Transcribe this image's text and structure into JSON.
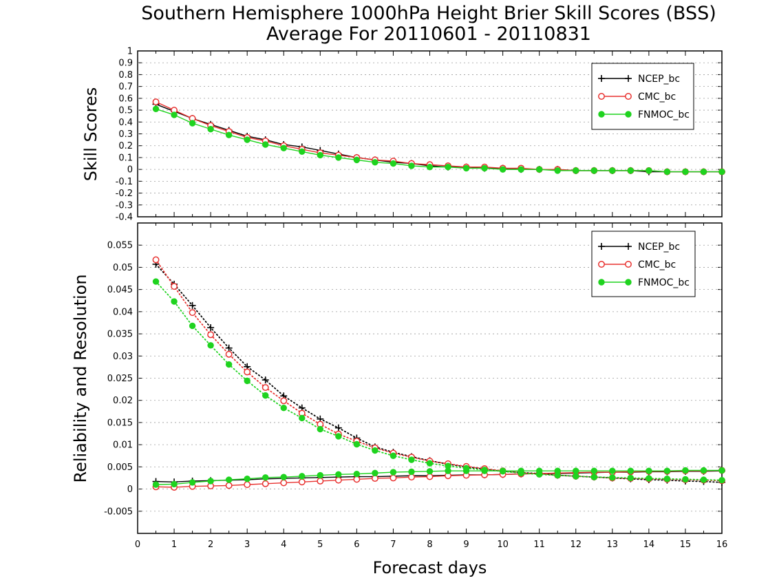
{
  "title_line1": "Southern Hemisphere 1000hPa Height Brier Skill Scores (BSS)",
  "title_line2": "Average For 20110601 - 20110831",
  "colors": {
    "NCEP_bc": "#000000",
    "CMC_bc": "#e8312f",
    "FNMOC_bc": "#1fd31f"
  },
  "chart_data": [
    {
      "type": "line",
      "ylabel": "Skill Scores",
      "xlabel": "",
      "xlim": [
        0,
        16
      ],
      "ylim": [
        -0.4,
        1
      ],
      "yticks": [
        "1",
        "0.9",
        "0.8",
        "0.7",
        "0.6",
        "0.5",
        "0.4",
        "0.3",
        "0.2",
        "0.1",
        "0",
        "-0.1",
        "-0.2",
        "-0.3",
        "-0.4"
      ],
      "grid": true,
      "legend_position": "top-right",
      "x": [
        0.5,
        1,
        1.5,
        2,
        2.5,
        3,
        3.5,
        4,
        4.5,
        5,
        5.5,
        6,
        6.5,
        7,
        7.5,
        8,
        8.5,
        9,
        9.5,
        10,
        10.5,
        11,
        11.5,
        12,
        12.5,
        13,
        13.5,
        14,
        14.5,
        15,
        15.5,
        16
      ],
      "series": [
        {
          "name": "NCEP_bc",
          "marker": "plus",
          "values": [
            0.55,
            0.49,
            0.43,
            0.38,
            0.33,
            0.28,
            0.25,
            0.21,
            0.19,
            0.16,
            0.13,
            0.1,
            0.08,
            0.06,
            0.05,
            0.03,
            0.02,
            0.02,
            0.01,
            0.01,
            0.0,
            0.0,
            0.0,
            -0.01,
            -0.01,
            -0.01,
            -0.01,
            -0.02,
            -0.02,
            -0.02,
            -0.02,
            -0.02
          ]
        },
        {
          "name": "CMC_bc",
          "marker": "circle-open",
          "values": [
            0.57,
            0.5,
            0.43,
            0.37,
            0.32,
            0.27,
            0.24,
            0.2,
            0.17,
            0.14,
            0.12,
            0.1,
            0.08,
            0.07,
            0.05,
            0.04,
            0.03,
            0.02,
            0.02,
            0.01,
            0.01,
            0.0,
            0.0,
            -0.01,
            -0.01,
            -0.01,
            -0.01,
            -0.01,
            -0.02,
            -0.02,
            -0.02,
            -0.02
          ]
        },
        {
          "name": "FNMOC_bc",
          "marker": "circle-filled",
          "values": [
            0.51,
            0.46,
            0.39,
            0.34,
            0.29,
            0.25,
            0.21,
            0.18,
            0.15,
            0.12,
            0.1,
            0.08,
            0.06,
            0.05,
            0.03,
            0.02,
            0.02,
            0.01,
            0.01,
            0.0,
            0.0,
            0.0,
            -0.01,
            -0.01,
            -0.01,
            -0.01,
            -0.01,
            -0.01,
            -0.02,
            -0.02,
            -0.02,
            -0.02
          ]
        }
      ]
    },
    {
      "type": "line",
      "ylabel": "Reliability and Resolution",
      "xlabel": "Forecast days",
      "xlim": [
        0,
        16
      ],
      "ylim": [
        -0.01,
        0.06
      ],
      "yticks": [
        "0.055",
        "0.05",
        "0.045",
        "0.04",
        "0.035",
        "0.03",
        "0.025",
        "0.02",
        "0.015",
        "0.01",
        "0.005",
        "0",
        "-0.005"
      ],
      "xticks": [
        "0",
        "1",
        "2",
        "3",
        "4",
        "5",
        "6",
        "7",
        "8",
        "9",
        "10",
        "11",
        "12",
        "13",
        "14",
        "15",
        "16"
      ],
      "grid": true,
      "legend_position": "top-right",
      "x": [
        0.5,
        1,
        1.5,
        2,
        2.5,
        3,
        3.5,
        4,
        4.5,
        5,
        5.5,
        6,
        6.5,
        7,
        7.5,
        8,
        8.5,
        9,
        9.5,
        10,
        10.5,
        11,
        11.5,
        12,
        12.5,
        13,
        13.5,
        14,
        14.5,
        15,
        15.5,
        16
      ],
      "series": [
        {
          "name": "NCEP_bc",
          "marker": "plus",
          "line": "solid",
          "values": [
            0.0017,
            0.0016,
            0.0018,
            0.0019,
            0.002,
            0.0021,
            0.0023,
            0.0024,
            0.0025,
            0.0026,
            0.0027,
            0.0028,
            0.0028,
            0.0029,
            0.003,
            0.003,
            0.0031,
            0.0032,
            0.0032,
            0.0033,
            0.0034,
            0.0035,
            0.0035,
            0.0036,
            0.0037,
            0.0038,
            0.0038,
            0.0039,
            0.0039,
            0.004,
            0.004,
            0.0041
          ]
        },
        {
          "name": "NCEP_bc",
          "marker": "plus",
          "line": "dotted",
          "values": [
            0.0507,
            0.0462,
            0.0414,
            0.0364,
            0.0318,
            0.0276,
            0.0246,
            0.021,
            0.0183,
            0.0158,
            0.0138,
            0.0115,
            0.0095,
            0.0083,
            0.0073,
            0.0064,
            0.0056,
            0.005,
            0.0045,
            0.004,
            0.0037,
            0.0035,
            0.0031,
            0.0029,
            0.0027,
            0.0025,
            0.0023,
            0.0021,
            0.002,
            0.0018,
            0.0017,
            0.0015
          ]
        },
        {
          "name": "CMC_bc",
          "marker": "circle-open",
          "line": "solid",
          "values": [
            0.0005,
            0.0004,
            0.0006,
            0.0007,
            0.0008,
            0.001,
            0.0012,
            0.0014,
            0.0016,
            0.0018,
            0.002,
            0.0022,
            0.0024,
            0.0025,
            0.0027,
            0.0028,
            0.003,
            0.0031,
            0.0032,
            0.0033,
            0.0034,
            0.0035,
            0.0036,
            0.0037,
            0.0038,
            0.0038,
            0.0039,
            0.004,
            0.004,
            0.0041,
            0.0041,
            0.0042
          ]
        },
        {
          "name": "CMC_bc",
          "marker": "circle-open",
          "line": "dotted",
          "values": [
            0.0517,
            0.0457,
            0.0398,
            0.0348,
            0.0304,
            0.0264,
            0.0229,
            0.0199,
            0.0171,
            0.0146,
            0.0124,
            0.0108,
            0.0093,
            0.0081,
            0.0072,
            0.0063,
            0.0057,
            0.0051,
            0.0046,
            0.0041,
            0.0037,
            0.0034,
            0.0031,
            0.0029,
            0.0027,
            0.0025,
            0.0024,
            0.0023,
            0.0022,
            0.0021,
            0.002,
            0.0019
          ]
        },
        {
          "name": "FNMOC_bc",
          "marker": "circle-filled",
          "line": "solid",
          "values": [
            0.001,
            0.0011,
            0.0015,
            0.0018,
            0.0021,
            0.0023,
            0.0026,
            0.0027,
            0.0029,
            0.0031,
            0.0033,
            0.0034,
            0.0036,
            0.0038,
            0.0039,
            0.004,
            0.0041,
            0.0041,
            0.0041,
            0.0041,
            0.0041,
            0.0041,
            0.0041,
            0.0041,
            0.0041,
            0.0041,
            0.0041,
            0.0041,
            0.0041,
            0.0042,
            0.0042,
            0.0042
          ]
        },
        {
          "name": "FNMOC_bc",
          "marker": "circle-filled",
          "line": "dotted",
          "values": [
            0.0468,
            0.0423,
            0.0368,
            0.0324,
            0.0281,
            0.0244,
            0.0211,
            0.0183,
            0.016,
            0.0135,
            0.0119,
            0.0101,
            0.0087,
            0.0075,
            0.0066,
            0.0058,
            0.0052,
            0.0047,
            0.0043,
            0.004,
            0.0036,
            0.0033,
            0.0031,
            0.0029,
            0.0027,
            0.0026,
            0.0025,
            0.0024,
            0.0023,
            0.0022,
            0.0021,
            0.002
          ]
        }
      ]
    }
  ]
}
